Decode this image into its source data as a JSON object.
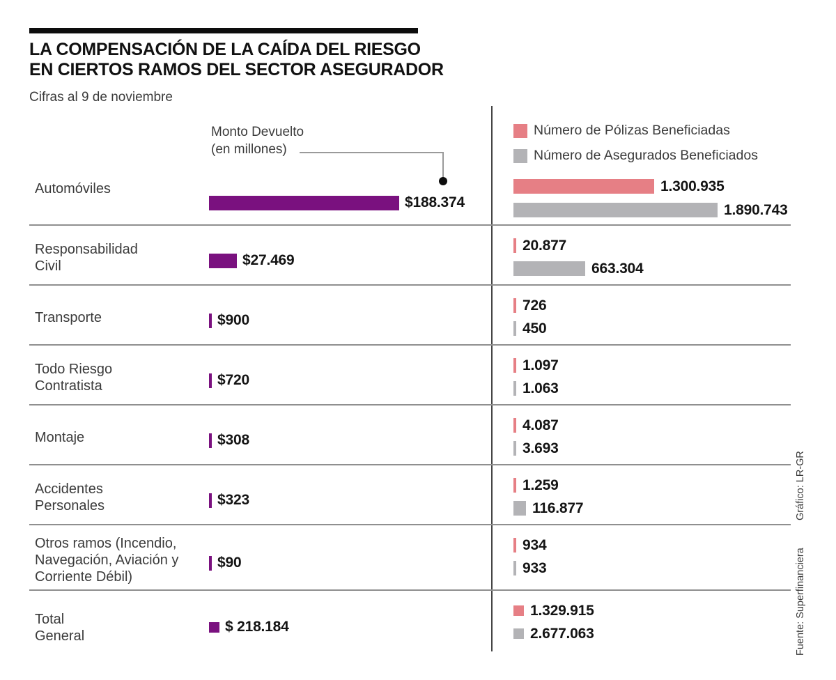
{
  "title": [
    "LA COMPENSACIÓN DE LA CAÍDA DEL RIESGO",
    "EN CIERTOS RAMOS DEL SECTOR ASEGURADOR"
  ],
  "subtitle": "Cifras al 9 de noviembre",
  "left_axis_label": [
    "Monto Devuelto",
    "(en millones)"
  ],
  "legend": [
    {
      "label": "Número de Pólizas Beneficiadas",
      "series": "polizas"
    },
    {
      "label": "Número de Asegurados Beneficiados",
      "series": "asegurados"
    }
  ],
  "colors": {
    "monto": "#7A117F",
    "polizas": "#E67F85",
    "asegurados": "#B3B3B6",
    "rule": "#0d0d0d",
    "divider": "#8f8f8f"
  },
  "credits": {
    "grafico": "Gráfico: LR-GR",
    "fuente": "Fuente: Superfinanciera"
  },
  "rows": [
    {
      "label": [
        "Automóviles"
      ],
      "is_total": false,
      "monto": {
        "display": "$188.374",
        "value": 188374
      },
      "polizas": {
        "display": "1.300.935",
        "value": 1300935
      },
      "asegurados": {
        "display": "1.890.743",
        "value": 1890743
      }
    },
    {
      "label": [
        "Responsabilidad",
        "Civil"
      ],
      "is_total": false,
      "monto": {
        "display": "$27.469",
        "value": 27469
      },
      "polizas": {
        "display": "20.877",
        "value": 20877
      },
      "asegurados": {
        "display": "663.304",
        "value": 663304
      }
    },
    {
      "label": [
        "Transporte"
      ],
      "is_total": false,
      "monto": {
        "display": "$900",
        "value": 900
      },
      "polizas": {
        "display": "726",
        "value": 726
      },
      "asegurados": {
        "display": "450",
        "value": 450
      }
    },
    {
      "label": [
        "Todo Riesgo",
        "Contratista"
      ],
      "is_total": false,
      "monto": {
        "display": "$720",
        "value": 720
      },
      "polizas": {
        "display": "1.097",
        "value": 1097
      },
      "asegurados": {
        "display": "1.063",
        "value": 1063
      }
    },
    {
      "label": [
        "Montaje"
      ],
      "is_total": false,
      "monto": {
        "display": "$308",
        "value": 308
      },
      "polizas": {
        "display": "4.087",
        "value": 4087
      },
      "asegurados": {
        "display": "3.693",
        "value": 3693
      }
    },
    {
      "label": [
        "Accidentes",
        "Personales"
      ],
      "is_total": false,
      "monto": {
        "display": "$323",
        "value": 323
      },
      "polizas": {
        "display": "1.259",
        "value": 1259
      },
      "asegurados": {
        "display": "116.877",
        "value": 116877
      }
    },
    {
      "label": [
        "Otros ramos (Incendio,",
        "Navegación, Aviación y",
        "Corriente Débil)"
      ],
      "is_total": false,
      "monto": {
        "display": "$90",
        "value": 90
      },
      "polizas": {
        "display": "934",
        "value": 934
      },
      "asegurados": {
        "display": "933",
        "value": 933
      }
    },
    {
      "label": [
        "Total",
        "General"
      ],
      "is_total": true,
      "monto": {
        "display": "$ 218.184",
        "value": 218184
      },
      "polizas": {
        "display": "1.329.915",
        "value": 1329915
      },
      "asegurados": {
        "display": "2.677.063",
        "value": 2677063
      }
    }
  ],
  "chart_data": {
    "type": "bar",
    "orientation": "horizontal",
    "title": "LA COMPENSACIÓN DE LA CAÍDA DEL RIESGO EN CIERTOS RAMOS DEL SECTOR ASEGURADOR",
    "subtitle": "Cifras al 9 de noviembre",
    "categories": [
      "Automóviles",
      "Responsabilidad Civil",
      "Transporte",
      "Todo Riesgo Contratista",
      "Montaje",
      "Accidentes Personales",
      "Otros ramos (Incendio, Navegación, Aviación y Corriente Débil)",
      "Total General"
    ],
    "series": [
      {
        "name": "Monto Devuelto (en millones)",
        "color": "#7A117F",
        "values": [
          188374,
          27469,
          900,
          720,
          308,
          323,
          90,
          218184
        ]
      },
      {
        "name": "Número de Pólizas Beneficiadas",
        "color": "#E67F85",
        "values": [
          1300935,
          20877,
          726,
          1097,
          4087,
          1259,
          934,
          1329915
        ]
      },
      {
        "name": "Número de Asegurados Beneficiados",
        "color": "#B3B3B6",
        "values": [
          1890743,
          663304,
          450,
          1063,
          3693,
          116877,
          933,
          2677063
        ]
      }
    ],
    "legend_position": "top-right",
    "grid": false,
    "notes": [
      "Gráfico: LR-GR",
      "Fuente: Superfinanciera"
    ]
  }
}
